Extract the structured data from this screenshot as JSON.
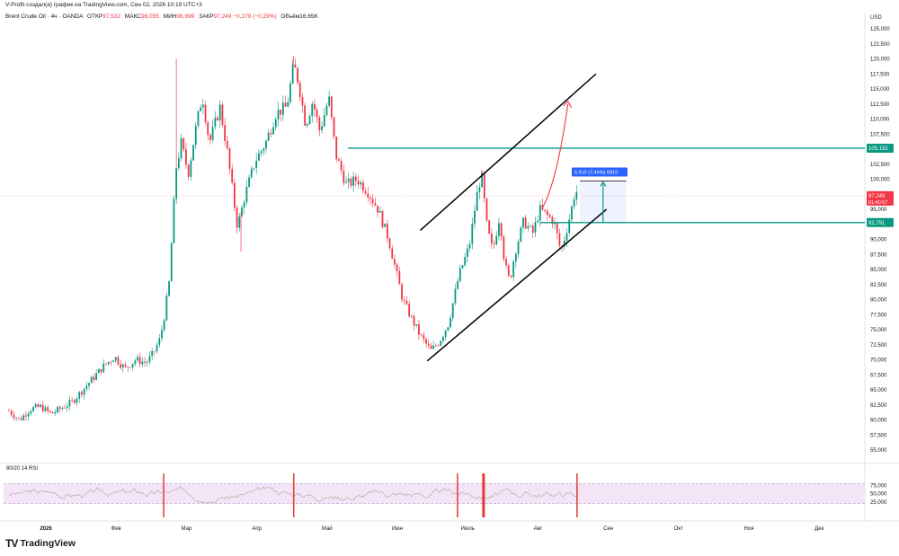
{
  "header": {
    "caption": "V-Profit создал(а) график на TradingView.com, Сен 02, 2026 10:19 UTC+3"
  },
  "legend": {
    "symbol": "Brent Crude Oil · 4ч · OANDA",
    "open_label": "ОТКР",
    "open_value": "97,532",
    "high_label": "МАКС",
    "high_value": "98,055",
    "low_label": "МИН",
    "low_value": "96,999",
    "close_label": "ЗАКР",
    "close_value": "97,249",
    "change": "−0,279 (−0,29%)",
    "volume_label": "Объём",
    "volume_value": "16,65K"
  },
  "rsi": {
    "label": "80/20 14 RSI"
  },
  "brand": {
    "mark": "TV",
    "wordmark": "TradingView"
  },
  "colors": {
    "up": "#089981",
    "down": "#f23645",
    "level": "#089981",
    "measure": "#2962ff",
    "rsi_band": "#f3e5f5",
    "arrow": "#f23645"
  },
  "chart_data": {
    "type": "candlestick",
    "currency": "USD",
    "ylim": [
      55000,
      125000
    ],
    "y_ticks": [
      {
        "value": 55000,
        "label": "55,000"
      },
      {
        "value": 57500,
        "label": "57,500"
      },
      {
        "value": 60000,
        "label": "60,000"
      },
      {
        "value": 62500,
        "label": "62,500"
      },
      {
        "value": 65000,
        "label": "65,000"
      },
      {
        "value": 67500,
        "label": "67,500"
      },
      {
        "value": 70000,
        "label": "70,000"
      },
      {
        "value": 72500,
        "label": "72,500"
      },
      {
        "value": 75000,
        "label": "75,000"
      },
      {
        "value": 77500,
        "label": "77,500"
      },
      {
        "value": 80000,
        "label": "80,000"
      },
      {
        "value": 82500,
        "label": "82,500"
      },
      {
        "value": 85000,
        "label": "85,000"
      },
      {
        "value": 87500,
        "label": "87,500"
      },
      {
        "value": 90000,
        "label": "90,000"
      },
      {
        "value": 92500,
        "label": "92,500"
      },
      {
        "value": 95000,
        "label": "95,000"
      },
      {
        "value": 97500,
        "label": "97,500"
      },
      {
        "value": 100000,
        "label": "100,000"
      },
      {
        "value": 102500,
        "label": "102,500"
      },
      {
        "value": 105000,
        "label": "105,000"
      },
      {
        "value": 107500,
        "label": "107,500"
      },
      {
        "value": 110000,
        "label": "110,000"
      },
      {
        "value": 112500,
        "label": "112,500"
      },
      {
        "value": 115000,
        "label": "115,000"
      },
      {
        "value": 117500,
        "label": "117,500"
      },
      {
        "value": 120000,
        "label": "120,000"
      },
      {
        "value": 122500,
        "label": "122,500"
      },
      {
        "value": 125000,
        "label": "125,000"
      }
    ],
    "x_ticks": [
      "2026",
      "Фев",
      "Мар",
      "Апр",
      "Май",
      "Июн",
      "Июль",
      "Авг",
      "Сен",
      "Окт",
      "Ноя",
      "Дек"
    ],
    "x_span_months": [
      0,
      12
    ],
    "price_path": [
      [
        0.0,
        61500
      ],
      [
        0.15,
        60000
      ],
      [
        0.3,
        61800
      ],
      [
        0.45,
        62200
      ],
      [
        0.6,
        61000
      ],
      [
        0.75,
        62000
      ],
      [
        0.9,
        63000
      ],
      [
        1.05,
        65000
      ],
      [
        1.2,
        67000
      ],
      [
        1.35,
        69000
      ],
      [
        1.5,
        70500
      ],
      [
        1.65,
        68500
      ],
      [
        1.8,
        70000
      ],
      [
        1.95,
        69500
      ],
      [
        2.05,
        71000
      ],
      [
        2.15,
        73500
      ],
      [
        2.22,
        78000
      ],
      [
        2.28,
        83000
      ],
      [
        2.33,
        93000
      ],
      [
        2.38,
        102000
      ],
      [
        2.45,
        106000
      ],
      [
        2.55,
        101000
      ],
      [
        2.65,
        108000
      ],
      [
        2.75,
        114000
      ],
      [
        2.85,
        106000
      ],
      [
        3.0,
        112000
      ],
      [
        3.1,
        105000
      ],
      [
        3.18,
        98000
      ],
      [
        3.25,
        92000
      ],
      [
        3.35,
        97000
      ],
      [
        3.5,
        103000
      ],
      [
        3.65,
        106000
      ],
      [
        3.8,
        111000
      ],
      [
        3.95,
        112000
      ],
      [
        4.05,
        119000
      ],
      [
        4.12,
        116000
      ],
      [
        4.22,
        109000
      ],
      [
        4.32,
        113000
      ],
      [
        4.42,
        108000
      ],
      [
        4.55,
        113500
      ],
      [
        4.65,
        104000
      ],
      [
        4.8,
        99000
      ],
      [
        4.95,
        100000
      ],
      [
        5.1,
        98000
      ],
      [
        5.25,
        95000
      ],
      [
        5.4,
        90000
      ],
      [
        5.5,
        85000
      ],
      [
        5.6,
        80000
      ],
      [
        5.72,
        77000
      ],
      [
        5.85,
        74000
      ],
      [
        6.0,
        71500
      ],
      [
        6.12,
        73000
      ],
      [
        6.25,
        76000
      ],
      [
        6.4,
        84000
      ],
      [
        6.55,
        89000
      ],
      [
        6.65,
        97000
      ],
      [
        6.72,
        101000
      ],
      [
        6.8,
        92000
      ],
      [
        6.88,
        88000
      ],
      [
        6.98,
        94000
      ],
      [
        7.05,
        86000
      ],
      [
        7.12,
        83000
      ],
      [
        7.2,
        88000
      ],
      [
        7.32,
        93000
      ],
      [
        7.45,
        91000
      ],
      [
        7.55,
        95000
      ],
      [
        7.65,
        94000
      ],
      [
        7.75,
        93000
      ],
      [
        7.85,
        88000
      ],
      [
        7.92,
        91000
      ],
      [
        8.0,
        95000
      ],
      [
        8.06,
        98500
      ],
      [
        8.09,
        97249
      ]
    ],
    "levels": [
      {
        "name": "resistance",
        "value": 105155,
        "label": "105,155"
      },
      {
        "name": "support",
        "value": 92791,
        "label": "92,791"
      }
    ],
    "last_price": {
      "value": 97249,
      "label": "97,249",
      "countdown": "01:40:57"
    },
    "channel": {
      "lower": [
        [
          5.95,
          69800
        ],
        [
          8.5,
          95000
        ]
      ],
      "upper": [
        [
          5.85,
          91500
        ],
        [
          8.35,
          117500
        ]
      ]
    },
    "projection": {
      "points": [
        [
          7.6,
          95500
        ],
        [
          7.8,
          100000
        ],
        [
          7.95,
          112500
        ]
      ]
    },
    "measure": {
      "label": "6,910 (7,46%) 6910",
      "from": 92791,
      "to": 99701,
      "x_from": 8.12,
      "x_to": 8.78
    },
    "rsi": {
      "ylim": [
        0,
        100
      ],
      "ticks": [
        {
          "value": 75,
          "label": "75,000"
        },
        {
          "value": 50,
          "label": "50,000"
        },
        {
          "value": 25,
          "label": "25,000"
        }
      ],
      "upper": 80,
      "lower": 20
    },
    "rsi_alerts": [
      2.2,
      4.05,
      6.38,
      6.75,
      8.08
    ]
  }
}
